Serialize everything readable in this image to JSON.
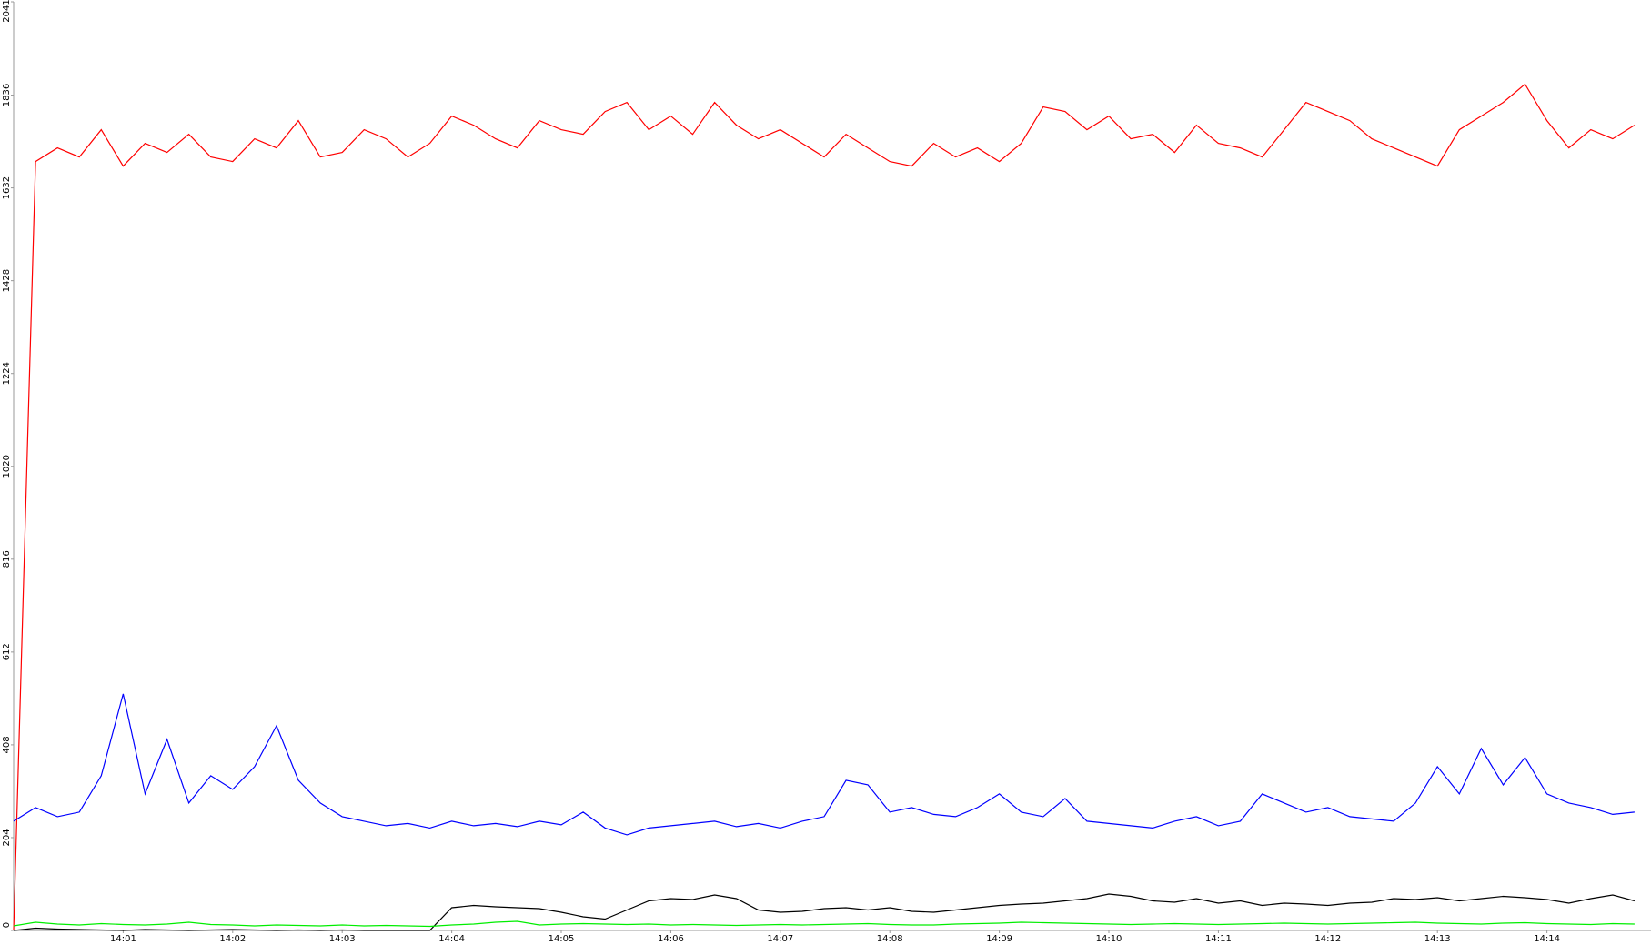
{
  "chart_data": {
    "type": "line",
    "x": [
      0,
      0.2,
      0.4,
      0.6,
      0.8,
      1,
      1.2,
      1.4,
      1.6,
      1.8,
      2,
      2.2,
      2.4,
      2.6,
      2.8,
      3,
      3.2,
      3.4,
      3.6,
      3.8,
      4,
      4.2,
      4.4,
      4.6,
      4.8,
      5,
      5.2,
      5.4,
      5.6,
      5.8,
      6,
      6.2,
      6.4,
      6.6,
      6.8,
      7,
      7.2,
      7.4,
      7.6,
      7.8,
      8,
      8.2,
      8.4,
      8.6,
      8.8,
      9,
      9.2,
      9.4,
      9.6,
      9.8,
      10,
      10.2,
      10.4,
      10.6,
      10.8,
      11,
      11.2,
      11.4,
      11.6,
      11.8,
      12,
      12.2,
      12.4,
      12.6,
      12.8,
      13,
      13.2,
      13.4,
      13.6,
      13.8,
      14,
      14.2,
      14.4,
      14.6,
      14.8
    ],
    "series": [
      {
        "color": "#ff0000",
        "values": [
          0,
          1690,
          1720,
          1700,
          1760,
          1680,
          1730,
          1710,
          1750,
          1700,
          1690,
          1740,
          1720,
          1780,
          1700,
          1710,
          1760,
          1740,
          1700,
          1730,
          1790,
          1770,
          1740,
          1720,
          1780,
          1760,
          1750,
          1800,
          1820,
          1760,
          1790,
          1750,
          1820,
          1770,
          1740,
          1760,
          1730,
          1700,
          1750,
          1720,
          1690,
          1680,
          1730,
          1700,
          1720,
          1690,
          1730,
          1810,
          1800,
          1760,
          1790,
          1740,
          1750,
          1710,
          1770,
          1730,
          1720,
          1700,
          1760,
          1820,
          1800,
          1780,
          1740,
          1720,
          1700,
          1680,
          1760,
          1790,
          1820,
          1860,
          1780,
          1720,
          1760,
          1740,
          1770
        ]
      },
      {
        "color": "#0000ff",
        "values": [
          240,
          270,
          250,
          260,
          340,
          520,
          300,
          420,
          280,
          340,
          310,
          360,
          450,
          330,
          280,
          250,
          240,
          230,
          235,
          225,
          240,
          230,
          235,
          228,
          240,
          232,
          260,
          225,
          210,
          225,
          230,
          235,
          240,
          228,
          235,
          225,
          240,
          250,
          330,
          320,
          260,
          270,
          255,
          250,
          270,
          300,
          260,
          250,
          290,
          240,
          235,
          230,
          225,
          240,
          250,
          230,
          240,
          300,
          280,
          260,
          270,
          250,
          245,
          240,
          280,
          360,
          300,
          400,
          320,
          380,
          300,
          280,
          270,
          255,
          260
        ]
      },
      {
        "color": "#000000",
        "values": [
          0,
          5,
          3,
          2,
          1,
          0,
          2,
          1,
          0,
          1,
          2,
          1,
          0,
          1,
          0,
          1,
          0,
          0,
          0,
          0,
          50,
          55,
          52,
          50,
          48,
          40,
          30,
          25,
          45,
          65,
          70,
          68,
          78,
          70,
          45,
          40,
          42,
          48,
          50,
          45,
          50,
          42,
          40,
          45,
          50,
          55,
          58,
          60,
          65,
          70,
          80,
          75,
          65,
          62,
          70,
          60,
          65,
          55,
          60,
          58,
          55,
          60,
          62,
          70,
          68,
          72,
          65,
          70,
          75,
          72,
          68,
          60,
          70,
          78,
          65
        ]
      },
      {
        "color": "#00ee00",
        "values": [
          10,
          18,
          14,
          12,
          15,
          13,
          12,
          14,
          18,
          13,
          12,
          10,
          12,
          11,
          10,
          12,
          10,
          11,
          10,
          9,
          12,
          14,
          18,
          20,
          12,
          14,
          15,
          14,
          13,
          14,
          12,
          13,
          12,
          11,
          12,
          13,
          12,
          13,
          14,
          15,
          13,
          12,
          12,
          14,
          15,
          16,
          18,
          17,
          16,
          15,
          14,
          13,
          14,
          15,
          14,
          13,
          14,
          15,
          16,
          15,
          14,
          15,
          16,
          17,
          18,
          16,
          15,
          14,
          16,
          17,
          15,
          14,
          13,
          15,
          14
        ]
      }
    ],
    "xlim": [
      0,
      14.95
    ],
    "xticks": [
      {
        "value": 1,
        "label": "14:01"
      },
      {
        "value": 2,
        "label": "14:02"
      },
      {
        "value": 3,
        "label": "14:03"
      },
      {
        "value": 4,
        "label": "14:04"
      },
      {
        "value": 5,
        "label": "14:05"
      },
      {
        "value": 6,
        "label": "14:06"
      },
      {
        "value": 7,
        "label": "14:07"
      },
      {
        "value": 8,
        "label": "14:08"
      },
      {
        "value": 9,
        "label": "14:09"
      },
      {
        "value": 10,
        "label": "14:10"
      },
      {
        "value": 11,
        "label": "14:11"
      },
      {
        "value": 12,
        "label": "14:12"
      },
      {
        "value": 13,
        "label": "14:13"
      },
      {
        "value": 14,
        "label": "14:14"
      }
    ],
    "ylim": [
      0,
      2041
    ],
    "yticks": [
      0,
      204,
      408,
      612,
      816,
      1020,
      1224,
      1428,
      1632,
      1836,
      2041
    ]
  }
}
